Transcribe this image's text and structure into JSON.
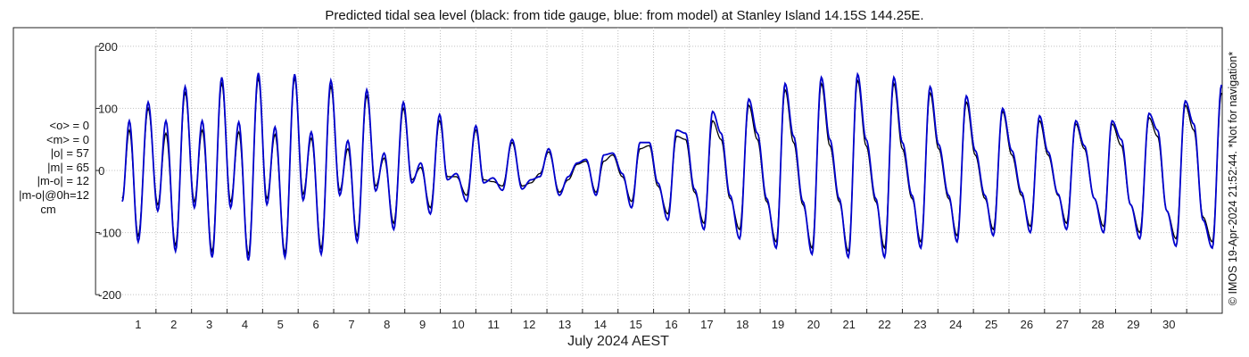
{
  "chart_data": {
    "type": "line",
    "title": "Predicted tidal sea level (black: from tide gauge, blue: from model) at Stanley Island 14.15S 144.25E.",
    "xlabel": "July 2024 AEST",
    "ylabel": "",
    "xlim": [
      0,
      31
    ],
    "ylim": [
      -230,
      230
    ],
    "x_ticks": [
      "1",
      "2",
      "3",
      "4",
      "5",
      "6",
      "7",
      "8",
      "9",
      "10",
      "11",
      "12",
      "13",
      "14",
      "15",
      "16",
      "17",
      "18",
      "19",
      "20",
      "21",
      "22",
      "23",
      "24",
      "25",
      "26",
      "27",
      "28",
      "29",
      "30"
    ],
    "y_ticks": [
      "200",
      "100",
      "0",
      "-100",
      "-200"
    ],
    "y_tick_values": [
      200,
      100,
      0,
      -100,
      -200
    ],
    "grid": "x-dotted",
    "series": [
      {
        "color": "#000000",
        "approx_half_day_extremes_cm": [
          [
            0.05,
            -45
          ],
          [
            0.25,
            65
          ],
          [
            0.5,
            -105
          ],
          [
            0.78,
            100
          ],
          [
            1.05,
            -55
          ],
          [
            1.28,
            60
          ],
          [
            1.55,
            -120
          ],
          [
            1.82,
            125
          ],
          [
            2.08,
            -50
          ],
          [
            2.3,
            65
          ],
          [
            2.58,
            -130
          ],
          [
            2.85,
            140
          ],
          [
            3.1,
            -50
          ],
          [
            3.33,
            62
          ],
          [
            3.6,
            -135
          ],
          [
            3.88,
            148
          ],
          [
            4.12,
            -45
          ],
          [
            4.35,
            58
          ],
          [
            4.63,
            -132
          ],
          [
            4.9,
            148
          ],
          [
            5.14,
            -38
          ],
          [
            5.37,
            52
          ],
          [
            5.65,
            -125
          ],
          [
            5.92,
            135
          ],
          [
            6.17,
            -32
          ],
          [
            6.4,
            35
          ],
          [
            6.66,
            -105
          ],
          [
            6.93,
            120
          ],
          [
            7.18,
            -25
          ],
          [
            7.42,
            20
          ],
          [
            7.69,
            -85
          ],
          [
            7.96,
            100
          ],
          [
            8.2,
            -15
          ],
          [
            8.45,
            5
          ],
          [
            8.72,
            -60
          ],
          [
            8.98,
            80
          ],
          [
            9.2,
            -10
          ],
          [
            9.45,
            -10
          ],
          [
            9.74,
            -40
          ],
          [
            10.0,
            65
          ],
          [
            10.22,
            -15
          ],
          [
            10.48,
            -18
          ],
          [
            10.75,
            -25
          ],
          [
            11.02,
            45
          ],
          [
            11.3,
            -25
          ],
          [
            11.55,
            -20
          ],
          [
            11.8,
            -5
          ],
          [
            12.05,
            30
          ],
          [
            12.35,
            -35
          ],
          [
            12.6,
            -15
          ],
          [
            12.85,
            10
          ],
          [
            13.1,
            15
          ],
          [
            13.38,
            -35
          ],
          [
            13.6,
            15
          ],
          [
            13.85,
            25
          ],
          [
            14.12,
            -10
          ],
          [
            14.38,
            -50
          ],
          [
            14.62,
            35
          ],
          [
            14.88,
            40
          ],
          [
            15.12,
            -25
          ],
          [
            15.4,
            -70
          ],
          [
            15.65,
            55
          ],
          [
            15.9,
            50
          ],
          [
            16.15,
            -35
          ],
          [
            16.42,
            -85
          ],
          [
            16.66,
            80
          ],
          [
            16.9,
            50
          ],
          [
            17.15,
            -45
          ],
          [
            17.42,
            -95
          ],
          [
            17.68,
            105
          ],
          [
            17.92,
            50
          ],
          [
            18.18,
            -50
          ],
          [
            18.45,
            -115
          ],
          [
            18.7,
            130
          ],
          [
            18.94,
            45
          ],
          [
            19.2,
            -55
          ],
          [
            19.46,
            -125
          ],
          [
            19.72,
            140
          ],
          [
            19.96,
            40
          ],
          [
            20.22,
            -50
          ],
          [
            20.48,
            -130
          ],
          [
            20.74,
            145
          ],
          [
            20.98,
            40
          ],
          [
            21.25,
            -50
          ],
          [
            21.5,
            -125
          ],
          [
            21.76,
            140
          ],
          [
            22.0,
            35
          ],
          [
            22.27,
            -45
          ],
          [
            22.52,
            -115
          ],
          [
            22.78,
            125
          ],
          [
            23.02,
            35
          ],
          [
            23.3,
            -45
          ],
          [
            23.54,
            -105
          ],
          [
            23.8,
            110
          ],
          [
            24.05,
            25
          ],
          [
            24.32,
            -45
          ],
          [
            24.56,
            -95
          ],
          [
            24.82,
            95
          ],
          [
            25.08,
            25
          ],
          [
            25.35,
            -40
          ],
          [
            25.6,
            -90
          ],
          [
            25.86,
            80
          ],
          [
            26.1,
            25
          ],
          [
            26.38,
            -40
          ],
          [
            26.62,
            -85
          ],
          [
            26.88,
            75
          ],
          [
            27.12,
            35
          ],
          [
            27.4,
            -45
          ],
          [
            27.66,
            -90
          ],
          [
            27.9,
            75
          ],
          [
            28.16,
            40
          ],
          [
            28.42,
            -55
          ],
          [
            28.68,
            -100
          ],
          [
            28.94,
            85
          ],
          [
            29.18,
            55
          ],
          [
            29.44,
            -65
          ],
          [
            29.7,
            -110
          ],
          [
            29.96,
            105
          ],
          [
            30.2,
            65
          ],
          [
            30.46,
            -75
          ],
          [
            30.72,
            -115
          ],
          [
            30.98,
            125
          ]
        ]
      },
      {
        "color": "#0000cc",
        "approx_half_day_extremes_cm": [
          [
            0.05,
            -50
          ],
          [
            0.25,
            80
          ],
          [
            0.5,
            -115
          ],
          [
            0.78,
            110
          ],
          [
            1.05,
            -65
          ],
          [
            1.28,
            80
          ],
          [
            1.55,
            -130
          ],
          [
            1.82,
            135
          ],
          [
            2.08,
            -60
          ],
          [
            2.3,
            80
          ],
          [
            2.58,
            -140
          ],
          [
            2.85,
            150
          ],
          [
            3.1,
            -60
          ],
          [
            3.33,
            78
          ],
          [
            3.6,
            -145
          ],
          [
            3.88,
            157
          ],
          [
            4.12,
            -55
          ],
          [
            4.35,
            70
          ],
          [
            4.63,
            -140
          ],
          [
            4.9,
            155
          ],
          [
            5.14,
            -48
          ],
          [
            5.37,
            62
          ],
          [
            5.65,
            -135
          ],
          [
            5.92,
            145
          ],
          [
            6.17,
            -40
          ],
          [
            6.4,
            48
          ],
          [
            6.66,
            -115
          ],
          [
            6.93,
            130
          ],
          [
            7.18,
            -33
          ],
          [
            7.42,
            28
          ],
          [
            7.69,
            -95
          ],
          [
            7.96,
            110
          ],
          [
            8.2,
            -20
          ],
          [
            8.45,
            12
          ],
          [
            8.72,
            -70
          ],
          [
            8.98,
            90
          ],
          [
            9.2,
            -15
          ],
          [
            9.45,
            -5
          ],
          [
            9.74,
            -50
          ],
          [
            10.0,
            72
          ],
          [
            10.22,
            -20
          ],
          [
            10.48,
            -12
          ],
          [
            10.75,
            -32
          ],
          [
            11.02,
            50
          ],
          [
            11.3,
            -30
          ],
          [
            11.55,
            -15
          ],
          [
            11.8,
            -10
          ],
          [
            12.05,
            35
          ],
          [
            12.35,
            -40
          ],
          [
            12.6,
            -10
          ],
          [
            12.85,
            12
          ],
          [
            13.1,
            18
          ],
          [
            13.38,
            -40
          ],
          [
            13.6,
            25
          ],
          [
            13.85,
            28
          ],
          [
            14.12,
            -5
          ],
          [
            14.38,
            -60
          ],
          [
            14.62,
            45
          ],
          [
            14.88,
            45
          ],
          [
            15.12,
            -20
          ],
          [
            15.4,
            -80
          ],
          [
            15.65,
            65
          ],
          [
            15.9,
            60
          ],
          [
            16.15,
            -30
          ],
          [
            16.42,
            -95
          ],
          [
            16.66,
            95
          ],
          [
            16.9,
            60
          ],
          [
            17.15,
            -40
          ],
          [
            17.42,
            -110
          ],
          [
            17.68,
            115
          ],
          [
            17.92,
            60
          ],
          [
            18.18,
            -45
          ],
          [
            18.45,
            -125
          ],
          [
            18.7,
            140
          ],
          [
            18.94,
            55
          ],
          [
            19.2,
            -50
          ],
          [
            19.46,
            -135
          ],
          [
            19.72,
            150
          ],
          [
            19.96,
            50
          ],
          [
            20.22,
            -45
          ],
          [
            20.48,
            -140
          ],
          [
            20.74,
            155
          ],
          [
            20.98,
            50
          ],
          [
            21.25,
            -45
          ],
          [
            21.5,
            -140
          ],
          [
            21.76,
            150
          ],
          [
            22.0,
            45
          ],
          [
            22.27,
            -40
          ],
          [
            22.52,
            -125
          ],
          [
            22.78,
            135
          ],
          [
            23.02,
            42
          ],
          [
            23.3,
            -40
          ],
          [
            23.54,
            -115
          ],
          [
            23.8,
            120
          ],
          [
            24.05,
            32
          ],
          [
            24.32,
            -40
          ],
          [
            24.56,
            -105
          ],
          [
            24.82,
            100
          ],
          [
            25.08,
            32
          ],
          [
            25.35,
            -35
          ],
          [
            25.6,
            -100
          ],
          [
            25.86,
            88
          ],
          [
            26.1,
            30
          ],
          [
            26.38,
            -38
          ],
          [
            26.62,
            -95
          ],
          [
            26.88,
            80
          ],
          [
            27.12,
            40
          ],
          [
            27.4,
            -45
          ],
          [
            27.66,
            -100
          ],
          [
            27.9,
            80
          ],
          [
            28.16,
            50
          ],
          [
            28.42,
            -55
          ],
          [
            28.68,
            -110
          ],
          [
            28.94,
            92
          ],
          [
            29.18,
            65
          ],
          [
            29.44,
            -65
          ],
          [
            29.7,
            -122
          ],
          [
            29.96,
            112
          ],
          [
            30.2,
            75
          ],
          [
            30.46,
            -80
          ],
          [
            30.72,
            -125
          ],
          [
            30.98,
            138
          ]
        ]
      }
    ]
  },
  "stats": {
    "mean_obs": "<o> = 0",
    "mean_model": "<m> = 0",
    "abs_obs": "|o| = 57",
    "abs_model": "|m| = 65",
    "abs_diff": "|m-o| = 12",
    "abs_diff_0h": "|m-o|@0h=12",
    "unit": "cm"
  },
  "copyright": "© IMOS 19-Apr-2024 21:52:44. *Not for navigation*"
}
